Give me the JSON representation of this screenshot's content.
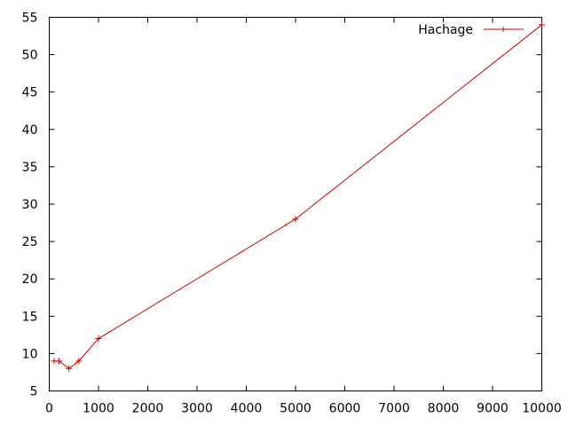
{
  "chart_data": {
    "type": "line",
    "title": "",
    "xlabel": "",
    "ylabel": "",
    "xlim": [
      0,
      10000
    ],
    "ylim": [
      5,
      55
    ],
    "xticks": [
      0,
      1000,
      2000,
      3000,
      4000,
      5000,
      6000,
      7000,
      8000,
      9000,
      10000
    ],
    "yticks": [
      5,
      10,
      15,
      20,
      25,
      30,
      35,
      40,
      45,
      50,
      55
    ],
    "grid": false,
    "legend_position": "top-right",
    "series": [
      {
        "name": "Hachage",
        "color": "#cc0000",
        "marker": "plus",
        "x": [
          100,
          200,
          400,
          600,
          1000,
          5000,
          10000
        ],
        "y": [
          9,
          9,
          8,
          9,
          12,
          28,
          54
        ]
      }
    ]
  }
}
